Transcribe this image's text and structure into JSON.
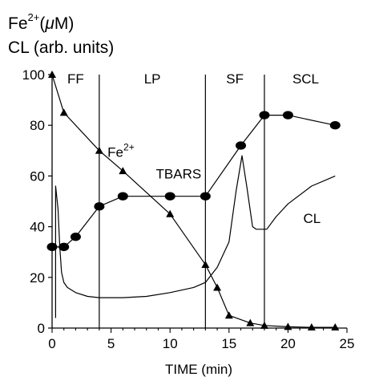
{
  "chart_data": {
    "type": "line",
    "ylabel_line1": {
      "base": "Fe",
      "sup": "2+",
      "rest": "(",
      "mu": "μ",
      "unit": "M)"
    },
    "ylabel_line2": "CL (arb. units)",
    "xlabel": "TIME (min)",
    "xlim": [
      0,
      25
    ],
    "ylim": [
      0,
      100
    ],
    "x_ticks": [
      "0",
      "5",
      "10",
      "15",
      "20",
      "25"
    ],
    "y_ticks": [
      "0",
      "20",
      "40",
      "60",
      "80",
      "100"
    ],
    "phase_labels": [
      "FF",
      "LP",
      "SF",
      "SCL"
    ],
    "phase_boundaries": [
      4,
      13,
      18
    ],
    "annotations": {
      "fe": {
        "base": "Fe",
        "sup": "2+"
      },
      "tbars": "TBARS",
      "cl": "CL"
    },
    "series": [
      {
        "key": "fe",
        "marker": "triangle",
        "x": [
          0,
          1,
          4,
          6,
          10,
          13,
          14,
          15,
          16.8,
          18,
          20,
          22,
          24
        ],
        "y": [
          100,
          85,
          70,
          62,
          45,
          25,
          16,
          5,
          2,
          1,
          0.5,
          0.3,
          0.3
        ]
      },
      {
        "key": "tbars",
        "marker": "ellipse",
        "x": [
          0,
          1,
          2,
          4,
          6,
          10,
          13,
          16,
          18,
          20,
          24
        ],
        "y": [
          32,
          32,
          36,
          48,
          52,
          52,
          52,
          72,
          84,
          84,
          80
        ]
      },
      {
        "key": "cl",
        "marker": "none",
        "x": [
          0.3,
          0.3,
          0.5,
          0.65,
          0.8,
          1,
          1.3,
          2,
          3,
          4,
          6,
          8,
          10,
          12,
          13,
          14,
          15,
          15.6,
          16.1,
          16.5,
          17,
          17.3,
          17.7,
          18.2,
          19,
          20,
          22,
          24
        ],
        "y": [
          4,
          56,
          47,
          32,
          22,
          18,
          16,
          14,
          12.5,
          12,
          12,
          12.5,
          14,
          16,
          18,
          24,
          34,
          54,
          68,
          56,
          40,
          39,
          39,
          39,
          44,
          49,
          56,
          60
        ]
      }
    ]
  }
}
